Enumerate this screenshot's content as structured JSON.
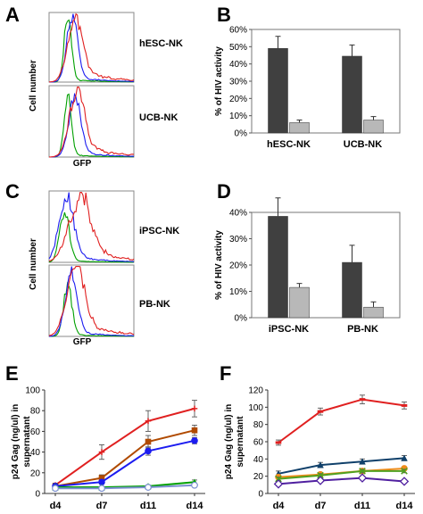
{
  "panels": {
    "A": {
      "letter": "A",
      "xlabel": "GFP",
      "ylabel": "Cell number",
      "subplots": [
        {
          "label": "hESC-NK",
          "curves": [
            {
              "color": "#00a000",
              "peak": 0.22,
              "width": 0.06,
              "height": 0.95,
              "tail": 0.05
            },
            {
              "color": "#1c1cf0",
              "peak": 0.27,
              "width": 0.09,
              "height": 0.92,
              "tail": 0.1
            },
            {
              "color": "#e02020",
              "peak": 0.3,
              "width": 0.12,
              "height": 0.85,
              "tail": 0.28
            }
          ]
        },
        {
          "label": "UCB-NK",
          "curves": [
            {
              "color": "#00a000",
              "peak": 0.22,
              "width": 0.06,
              "height": 0.85,
              "tail": 0.05
            },
            {
              "color": "#1c1cf0",
              "peak": 0.3,
              "width": 0.1,
              "height": 0.8,
              "tail": 0.12
            },
            {
              "color": "#e02020",
              "peak": 0.32,
              "width": 0.12,
              "height": 0.88,
              "tail": 0.3
            }
          ]
        }
      ]
    },
    "C": {
      "letter": "C",
      "xlabel": "GFP",
      "ylabel": "Cell number",
      "subplots": [
        {
          "label": "iPSC-NK",
          "curves": [
            {
              "color": "#00a000",
              "peak": 0.18,
              "width": 0.08,
              "height": 0.7,
              "tail": 0.05
            },
            {
              "color": "#1c1cf0",
              "peak": 0.2,
              "width": 0.12,
              "height": 0.88,
              "tail": 0.15
            },
            {
              "color": "#e02020",
              "peak": 0.35,
              "width": 0.18,
              "height": 0.8,
              "tail": 0.4
            }
          ]
        },
        {
          "label": "PB-NK",
          "curves": [
            {
              "color": "#00a000",
              "peak": 0.22,
              "width": 0.07,
              "height": 0.7,
              "tail": 0.05
            },
            {
              "color": "#1c1cf0",
              "peak": 0.26,
              "width": 0.1,
              "height": 0.85,
              "tail": 0.1
            },
            {
              "color": "#e02020",
              "peak": 0.3,
              "width": 0.14,
              "height": 0.9,
              "tail": 0.35
            }
          ]
        }
      ]
    }
  },
  "chart_data": [
    {
      "panel": "B",
      "type": "bar",
      "ylabel": "% of HIV activity",
      "ylim": [
        0,
        60
      ],
      "yticks": [
        0,
        10,
        20,
        30,
        40,
        50,
        60
      ],
      "ytick_format": "percent",
      "categories": [
        "hESC-NK",
        "UCB-NK"
      ],
      "series": [
        {
          "color": "#404040",
          "values": [
            49,
            44.5
          ],
          "errors": [
            7,
            6.5
          ]
        },
        {
          "color": "#b8b8b8",
          "values": [
            6,
            7.5
          ],
          "errors": [
            1.5,
            2
          ]
        }
      ]
    },
    {
      "panel": "D",
      "type": "bar",
      "ylabel": "% of HIV activity",
      "ylim": [
        0,
        40
      ],
      "yticks": [
        0,
        10,
        20,
        30,
        40
      ],
      "ytick_format": "percent",
      "categories": [
        "iPSC-NK",
        "PB-NK"
      ],
      "series": [
        {
          "color": "#404040",
          "values": [
            38.5,
            21
          ],
          "errors": [
            7,
            6.5
          ]
        },
        {
          "color": "#b8b8b8",
          "values": [
            11.5,
            4
          ],
          "errors": [
            1.5,
            2
          ]
        }
      ]
    },
    {
      "panel": "E",
      "type": "line",
      "ylabel": "p24 Gag (ng/ul) in supernatant",
      "ylim": [
        0,
        100
      ],
      "yticks": [
        0,
        20,
        40,
        60,
        80,
        100
      ],
      "x": [
        "d4",
        "d7",
        "d11",
        "d14"
      ],
      "series": [
        {
          "color": "#e02020",
          "marker": "plus",
          "values": [
            8,
            40,
            70,
            82
          ],
          "errors": [
            2,
            7,
            10,
            8
          ]
        },
        {
          "color": "#b04a00",
          "marker": "square",
          "values": [
            7,
            15,
            50,
            61
          ],
          "errors": [
            2,
            3,
            6,
            5
          ]
        },
        {
          "color": "#1c1cf0",
          "marker": "circle",
          "values": [
            7,
            11,
            41,
            51
          ],
          "errors": [
            2,
            2,
            4,
            3
          ]
        },
        {
          "color": "#00a000",
          "marker": "tri",
          "values": [
            6,
            6,
            7,
            11
          ],
          "errors": [
            1,
            1,
            1,
            2
          ]
        },
        {
          "color": "#7b8fd0",
          "marker": "circle-open",
          "values": [
            5,
            5,
            6,
            8
          ],
          "errors": [
            1,
            1,
            1,
            1
          ]
        }
      ]
    },
    {
      "panel": "F",
      "type": "line",
      "ylabel": "p24 Gag (ng/ul) in supernatant",
      "ylim": [
        0,
        120
      ],
      "yticks": [
        0,
        20,
        40,
        60,
        80,
        100,
        120
      ],
      "x": [
        "d4",
        "d7",
        "d11",
        "d14"
      ],
      "series": [
        {
          "color": "#e02020",
          "marker": "dash",
          "values": [
            59,
            95,
            109,
            102
          ],
          "errors": [
            3,
            4,
            5,
            4
          ]
        },
        {
          "color": "#10406a",
          "marker": "tri",
          "values": [
            23,
            33,
            37,
            41
          ],
          "errors": [
            3,
            3,
            3,
            3
          ]
        },
        {
          "color": "#f08c1a",
          "marker": "circle",
          "values": [
            19,
            22,
            26,
            29
          ],
          "errors": [
            2,
            2,
            2,
            2
          ]
        },
        {
          "color": "#50a020",
          "marker": "x",
          "values": [
            17,
            21,
            26,
            26
          ],
          "errors": [
            2,
            2,
            2,
            2
          ]
        },
        {
          "color": "#5020a0",
          "marker": "diamond-open",
          "values": [
            11,
            15,
            18,
            14
          ],
          "errors": [
            2,
            2,
            2,
            2
          ]
        }
      ]
    }
  ]
}
